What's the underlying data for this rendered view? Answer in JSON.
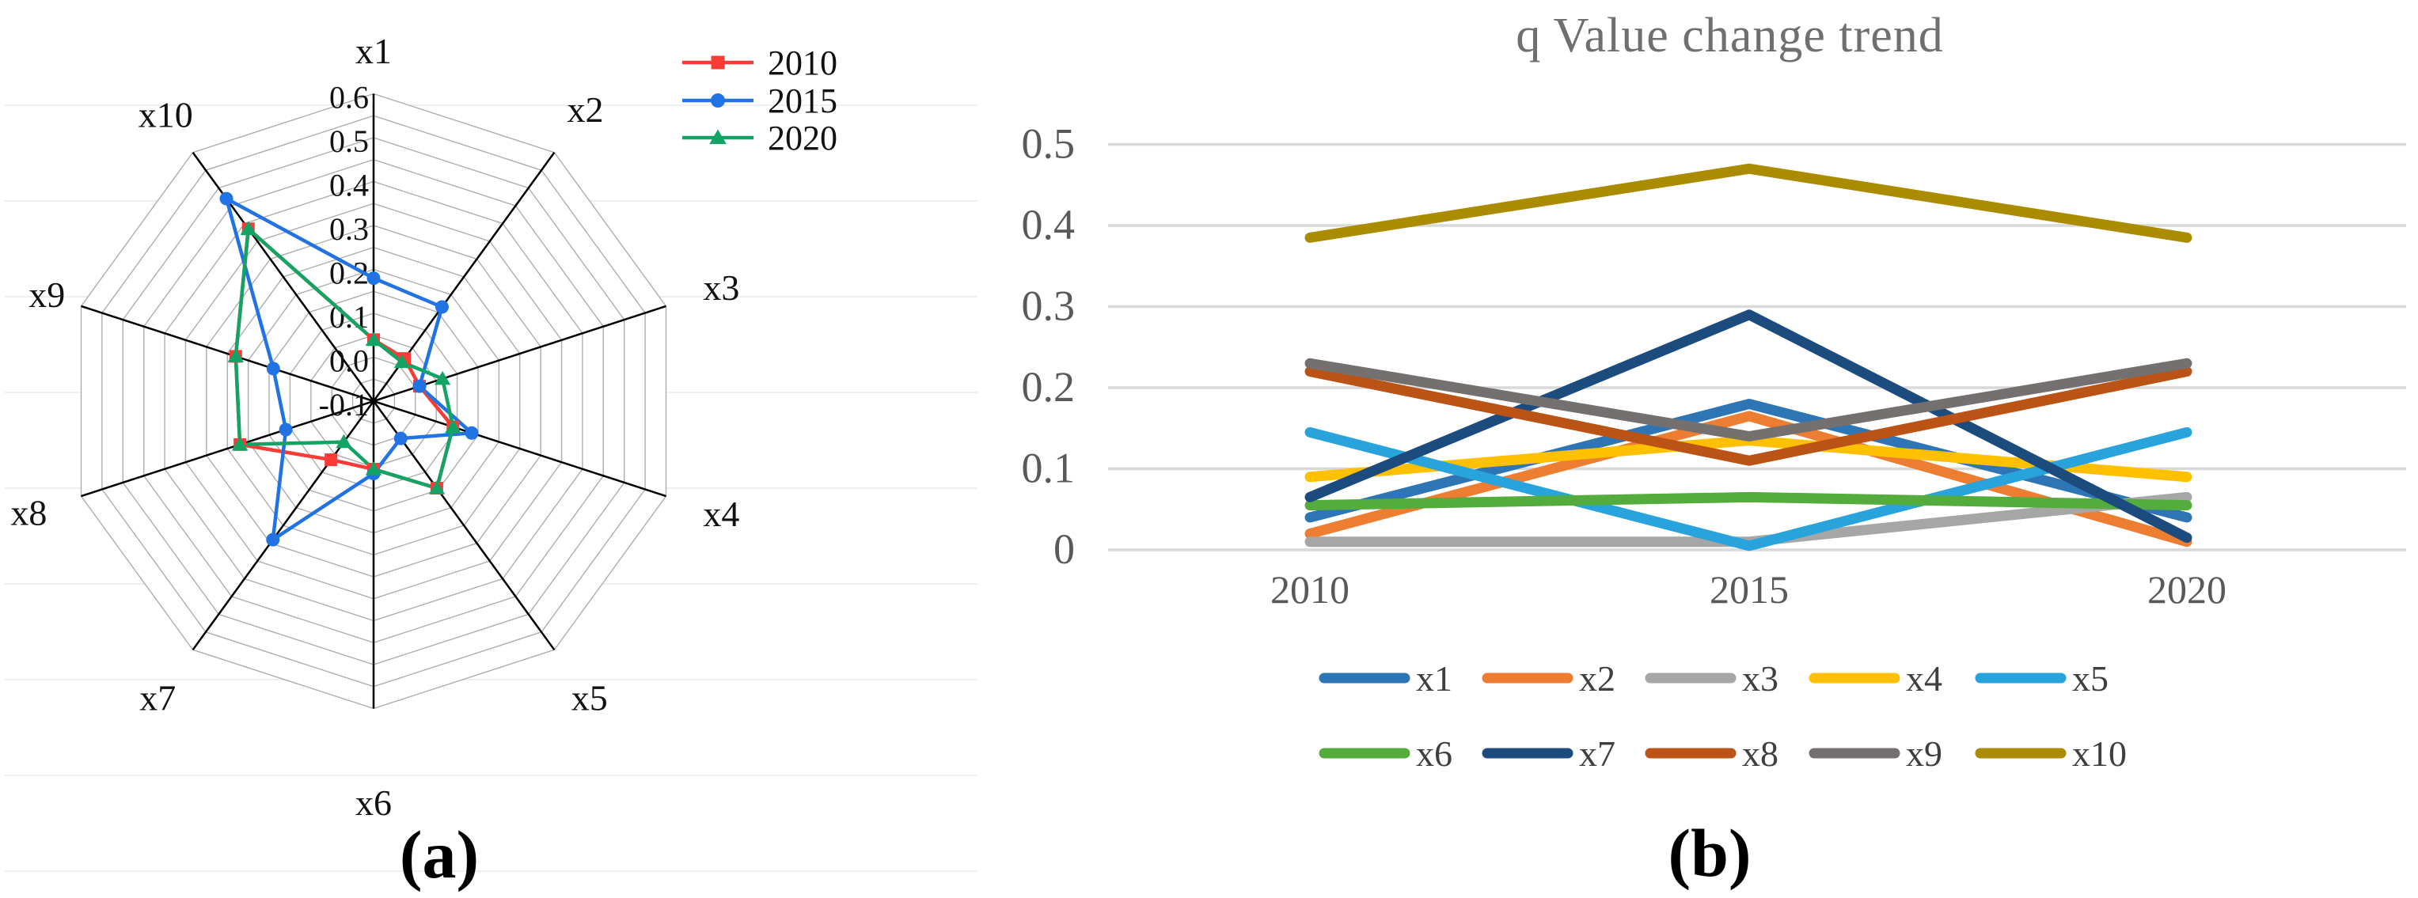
{
  "figure": {
    "caption_a": "(a)",
    "caption_b": "(b)"
  },
  "chart_data": [
    {
      "type": "radar",
      "panel": "a",
      "categories": [
        "x1",
        "x2",
        "x3",
        "x4",
        "x5",
        "x6",
        "x7",
        "x8",
        "x9",
        "x10"
      ],
      "r_min": -0.1,
      "r_max": 0.6,
      "ring_step": 0.05,
      "tick_labels": [
        "0.6",
        "0.5",
        "0.4",
        "0.3",
        "0.2",
        "0.1",
        "0.0",
        "-0.1"
      ],
      "grid_shape": "polygon",
      "legend_position": "top-right",
      "series": [
        {
          "name": "2010",
          "color": "#FA3B36",
          "marker": "square",
          "values": [
            0.04,
            0.02,
            0.01,
            0.09,
            0.145,
            0.055,
            0.065,
            0.22,
            0.23,
            0.385
          ]
        },
        {
          "name": "2015",
          "color": "#2173E3",
          "marker": "circle",
          "values": [
            0.18,
            0.165,
            0.01,
            0.135,
            0.005,
            0.065,
            0.29,
            0.11,
            0.14,
            0.47
          ]
        },
        {
          "name": "2020",
          "color": "#13A364",
          "marker": "triangle",
          "values": [
            0.04,
            0.01,
            0.065,
            0.09,
            0.145,
            0.055,
            0.015,
            0.22,
            0.23,
            0.385
          ]
        }
      ]
    },
    {
      "type": "line",
      "panel": "b",
      "title": "q Value change trend",
      "x": [
        "2010",
        "2015",
        "2020"
      ],
      "ylim": [
        0,
        0.5
      ],
      "ytick_labels": [
        "0",
        "0.1",
        "0.2",
        "0.3",
        "0.4",
        "0.5"
      ],
      "grid": "horizontal",
      "legend_position": "bottom",
      "series": [
        {
          "name": "x1",
          "color": "#2E75B6",
          "values": [
            0.04,
            0.18,
            0.04
          ]
        },
        {
          "name": "x2",
          "color": "#ED7D31",
          "values": [
            0.02,
            0.165,
            0.01
          ]
        },
        {
          "name": "x3",
          "color": "#A6A6A6",
          "values": [
            0.01,
            0.01,
            0.065
          ]
        },
        {
          "name": "x4",
          "color": "#FFC000",
          "values": [
            0.09,
            0.135,
            0.09
          ]
        },
        {
          "name": "x5",
          "color": "#29A3DC",
          "values": [
            0.145,
            0.005,
            0.145
          ]
        },
        {
          "name": "x6",
          "color": "#54AC3C",
          "values": [
            0.055,
            0.065,
            0.055
          ]
        },
        {
          "name": "x7",
          "color": "#1C4B7E",
          "values": [
            0.065,
            0.29,
            0.015
          ]
        },
        {
          "name": "x8",
          "color": "#BA5315",
          "values": [
            0.22,
            0.11,
            0.22
          ]
        },
        {
          "name": "x9",
          "color": "#747070",
          "values": [
            0.23,
            0.14,
            0.23
          ]
        },
        {
          "name": "x10",
          "color": "#AB8B00",
          "values": [
            0.385,
            0.47,
            0.385
          ]
        }
      ]
    }
  ]
}
